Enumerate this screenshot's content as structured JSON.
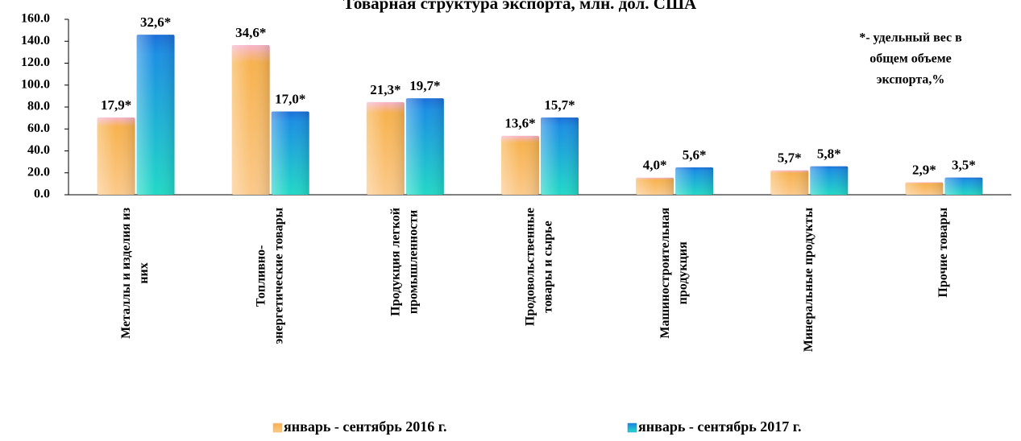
{
  "chart_data": {
    "type": "bar",
    "title": "Товарная структура экспорта, млн. дол. США",
    "note": [
      "*- удельный вес в",
      "общем объеме",
      "экспорта,%"
    ],
    "categories": [
      [
        "Металлы и изделия из",
        "них"
      ],
      [
        "Топливно-",
        "энергетические товары"
      ],
      [
        "Продукция легкой",
        "промышленности"
      ],
      [
        "Продовольственные",
        "товары и сырье"
      ],
      [
        "Машиностроительная",
        "продукция"
      ],
      [
        "Минеральные продукты"
      ],
      [
        "Прочие товары"
      ]
    ],
    "series": [
      {
        "name": "январь - сентябрь 2016 г.",
        "color": "#f7b24e",
        "top_color": "#f7b4cc",
        "values": [
          70.5,
          136.5,
          84.5,
          53.8,
          15.6,
          22.3,
          11.4
        ],
        "share_labels": [
          "17,9*",
          "34,6*",
          "21,3*",
          "13,6*",
          "4,0*",
          "5,7*",
          "2,9*"
        ]
      },
      {
        "name": "январь - сентябрь 2017 г.",
        "color": "#1b8fe3",
        "top_color": "#1b6fd8",
        "values": [
          146,
          76,
          88,
          70.5,
          25,
          26,
          15.7
        ],
        "share_labels": [
          "32,6*",
          "17,0*",
          "19,7*",
          "15,7*",
          "5,6*",
          "5,8*",
          "3,5*"
        ]
      }
    ],
    "ylim": [
      0,
      160
    ],
    "yticks": [
      {
        "value": 0,
        "label": "0.0"
      },
      {
        "value": 20,
        "label": "20.0"
      },
      {
        "value": 40,
        "label": "40.0"
      },
      {
        "value": 60,
        "label": "60.0"
      },
      {
        "value": 80,
        "label": "80.0"
      },
      {
        "value": 100,
        "label": "100.0"
      },
      {
        "value": 120,
        "label": "120.0"
      },
      {
        "value": 140,
        "label": "140.0"
      },
      {
        "value": 160,
        "label": "160.0"
      }
    ],
    "legend": "bottom"
  }
}
